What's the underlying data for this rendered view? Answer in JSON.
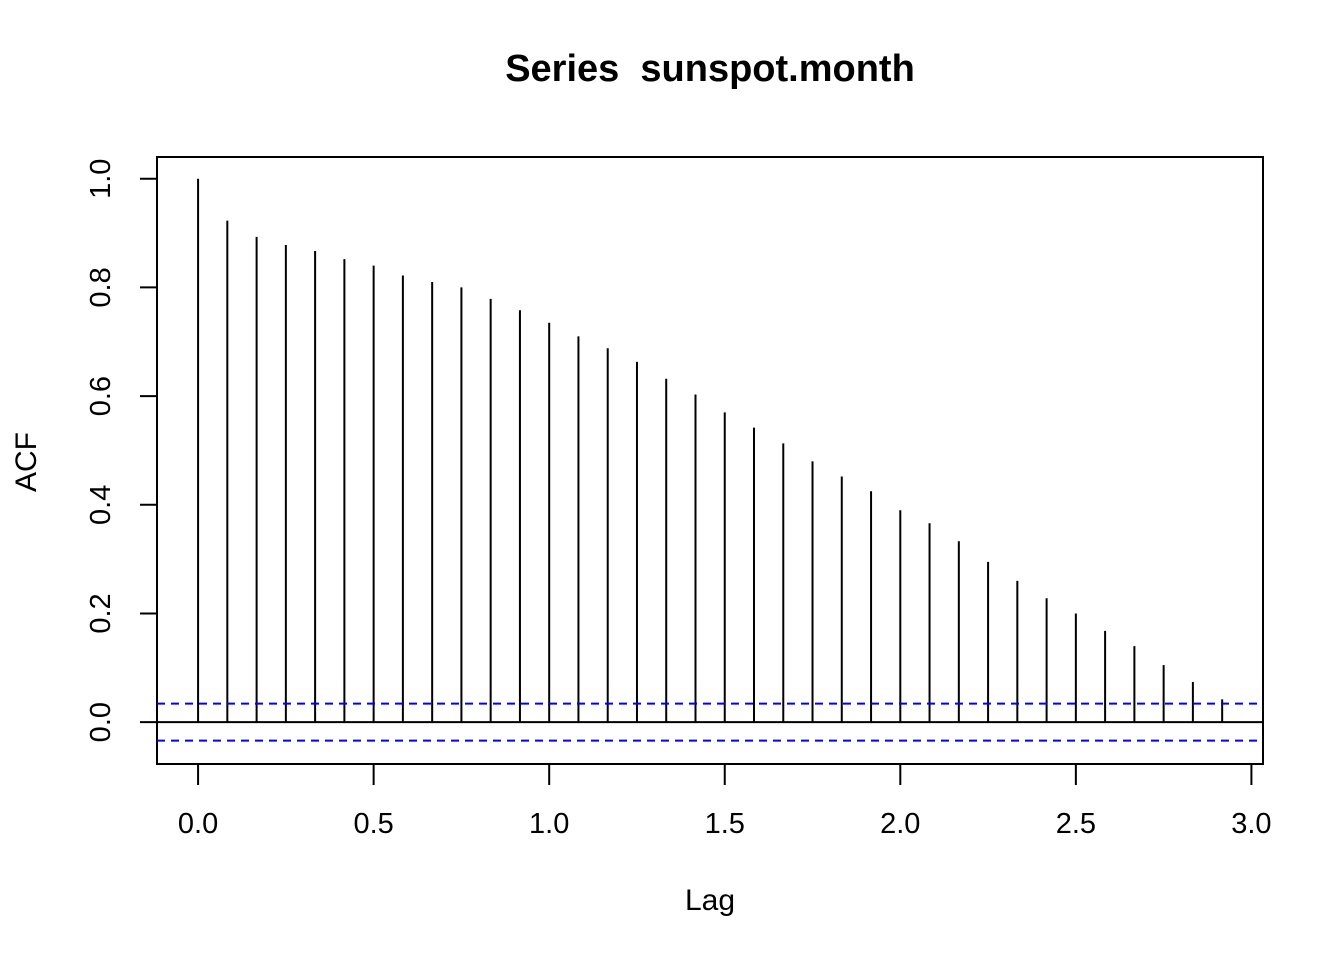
{
  "chart_data": {
    "type": "bar",
    "title": "Series  sunspot.month",
    "xlabel": "Lag",
    "ylabel": "ACF",
    "xlim": [
      -0.117,
      3.033
    ],
    "ylim": [
      -0.077,
      1.04
    ],
    "x_ticks": [
      "0.0",
      "0.5",
      "1.0",
      "1.5",
      "2.0",
      "2.5",
      "3.0"
    ],
    "y_ticks": [
      "0.0",
      "0.2",
      "0.4",
      "0.6",
      "0.8",
      "1.0"
    ],
    "confidence_bound": 0.034,
    "confidence_color": "#0000ff",
    "grid": false,
    "series": [
      {
        "x": [
          0,
          0.0833,
          0.1667,
          0.25,
          0.3333,
          0.4167,
          0.5,
          0.5833,
          0.6667,
          0.75,
          0.8333,
          0.9167,
          1.0,
          1.0833,
          1.1667,
          1.25,
          1.3333,
          1.4167,
          1.5,
          1.5833,
          1.6667,
          1.75,
          1.8333,
          1.9167,
          2.0,
          2.0833,
          2.1667,
          2.25,
          2.3333,
          2.4167,
          2.5,
          2.5833,
          2.6667,
          2.75,
          2.8333,
          2.9167
        ],
        "values": [
          1.0,
          0.923,
          0.893,
          0.878,
          0.867,
          0.852,
          0.84,
          0.822,
          0.81,
          0.8,
          0.779,
          0.758,
          0.735,
          0.71,
          0.688,
          0.663,
          0.632,
          0.603,
          0.57,
          0.542,
          0.513,
          0.48,
          0.452,
          0.425,
          0.39,
          0.366,
          0.333,
          0.295,
          0.26,
          0.228,
          0.2,
          0.168,
          0.14,
          0.105,
          0.074,
          0.042
        ]
      }
    ]
  }
}
